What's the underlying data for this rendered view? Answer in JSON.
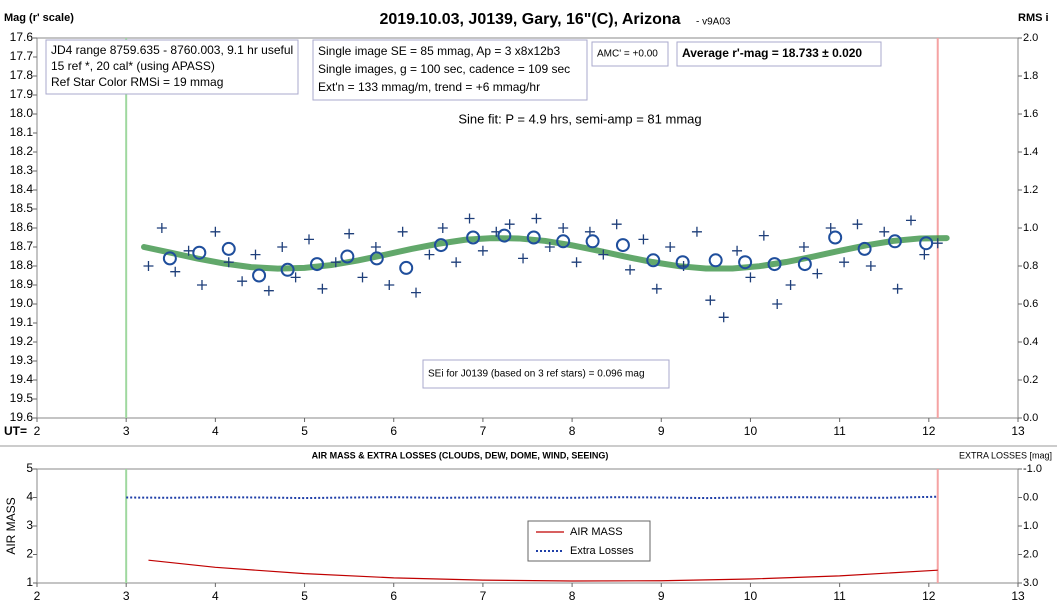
{
  "chart_data": [
    {
      "type": "scatter",
      "title": "2019.10.03, J0139, Gary, 16\"(C), Arizona",
      "subtitle": "- v9A03",
      "ylabel": "Mag (r' scale)",
      "y2label": "RMS i",
      "xprefix": "UT=",
      "xlim": [
        2,
        13
      ],
      "xticks": [
        2,
        3,
        4,
        5,
        6,
        7,
        8,
        9,
        10,
        11,
        12,
        13
      ],
      "ylim": [
        17.6,
        19.6
      ],
      "y_inverted": true,
      "yticks": [
        17.6,
        17.7,
        17.8,
        17.9,
        {
          "value": 18,
          "label": "18.0"
        },
        18.1,
        18.2,
        18.3,
        18.4,
        18.5,
        18.6,
        18.7,
        18.8,
        18.9,
        {
          "value": 19,
          "label": "19.0"
        },
        19.1,
        19.2,
        19.3,
        19.4,
        19.5,
        19.6
      ],
      "y2lim": [
        0,
        2
      ],
      "y2ticks": [
        {
          "value": 0,
          "label": "0.0"
        },
        0.2,
        0.4,
        0.6,
        0.8,
        {
          "value": 1,
          "label": "1.0"
        },
        1.2,
        1.4,
        1.6,
        1.8,
        {
          "value": 2,
          "label": "2.0"
        }
      ],
      "vlines": [
        {
          "x": 3,
          "color": "#9fd89f"
        },
        {
          "x": 12.1,
          "color": "#f5a3a3"
        }
      ],
      "text_boxes": [
        [
          "JD4 range 8759.635 - 8760.003, 9.1 hr useful",
          "15 ref *, 20 cal* (using APASS)",
          "Ref Star Color RMSi = 19 mmag"
        ],
        [
          "Single image SE = 85 mmag, Ap = 3 x8x12b3",
          "Single images, g = 100 sec, cadence = 109 sec",
          "Ext'n = 133 mmag/m, trend = +6 mmag/hr"
        ],
        [
          "AMC' = +0.00"
        ],
        [
          "Average r'-mag =  18.733 ± 0.020"
        ],
        [
          "SEi for J0139 (based on 3 ref stars) = 0.096 mag"
        ]
      ],
      "annotations": [
        "Sine fit: P = 4.9 hrs, semi-amp = 81 mmag"
      ],
      "series": [
        {
          "marker": "line",
          "color": "#2e8b3a",
          "x": [
            3.2,
            3.5,
            3.8,
            4.1,
            4.4,
            4.7,
            5.0,
            5.3,
            5.6,
            5.9,
            6.2,
            6.5,
            6.8,
            7.1,
            7.4,
            7.7,
            8.0,
            8.3,
            8.6,
            8.9,
            9.2,
            9.5,
            9.8,
            10.1,
            10.4,
            10.7,
            11.0,
            11.3,
            11.6,
            11.9,
            12.2
          ],
          "values": [
            18.7,
            18.73,
            18.761,
            18.787,
            18.806,
            18.814,
            18.81,
            18.795,
            18.771,
            18.741,
            18.71,
            18.683,
            18.662,
            18.653,
            18.655,
            18.668,
            18.691,
            18.72,
            18.751,
            18.779,
            18.801,
            18.813,
            18.813,
            18.801,
            18.779,
            18.751,
            18.72,
            18.691,
            18.668,
            18.655,
            18.653
          ]
        },
        {
          "marker": "cross",
          "color": "#1f3f7a",
          "x": [
            3.25,
            3.4,
            3.55,
            3.7,
            3.85,
            4.0,
            4.15,
            4.3,
            4.45,
            4.6,
            4.75,
            4.9,
            5.05,
            5.2,
            5.35,
            5.5,
            5.65,
            5.8,
            5.95,
            6.1,
            6.25,
            6.4,
            6.55,
            6.7,
            6.85,
            7.0,
            7.15,
            7.3,
            7.45,
            7.6,
            7.75,
            7.9,
            8.05,
            8.2,
            8.35,
            8.5,
            8.65,
            8.8,
            8.95,
            9.1,
            9.25,
            9.4,
            9.55,
            9.7,
            9.85,
            10.0,
            10.15,
            10.3,
            10.45,
            10.6,
            10.75,
            10.9,
            11.05,
            11.2,
            11.35,
            11.5,
            11.65,
            11.8,
            11.95,
            12.1
          ],
          "values": [
            18.8,
            18.6,
            18.83,
            18.72,
            18.9,
            18.62,
            18.78,
            18.88,
            18.74,
            18.93,
            18.7,
            18.86,
            18.66,
            18.92,
            18.78,
            18.63,
            18.86,
            18.7,
            18.9,
            18.62,
            18.94,
            18.74,
            18.6,
            18.78,
            18.55,
            18.72,
            18.62,
            18.58,
            18.76,
            18.55,
            18.7,
            18.6,
            18.78,
            18.62,
            18.74,
            18.58,
            18.82,
            18.66,
            18.92,
            18.7,
            18.8,
            18.62,
            18.98,
            19.07,
            18.72,
            18.86,
            18.64,
            19.0,
            18.9,
            18.7,
            18.84,
            18.6,
            18.78,
            18.58,
            18.8,
            18.62,
            18.92,
            18.56,
            18.74,
            18.68
          ]
        },
        {
          "marker": "circle",
          "color": "#1f4e9c",
          "x": [
            3.49,
            3.82,
            4.15,
            4.49,
            4.81,
            5.14,
            5.48,
            5.81,
            6.14,
            6.53,
            6.89,
            7.24,
            7.57,
            7.9,
            8.23,
            8.57,
            8.91,
            9.24,
            9.61,
            9.94,
            10.27,
            10.61,
            10.95,
            11.28,
            11.62,
            11.97
          ],
          "values": [
            18.76,
            18.73,
            18.71,
            18.85,
            18.82,
            18.79,
            18.75,
            18.76,
            18.81,
            18.69,
            18.65,
            18.64,
            18.65,
            18.67,
            18.67,
            18.69,
            18.77,
            18.78,
            18.77,
            18.78,
            18.79,
            18.79,
            18.65,
            18.71,
            18.67,
            18.68
          ]
        }
      ]
    },
    {
      "type": "line",
      "title": "AIR MASS & EXTRA LOSSES (CLOUDS, DEW, DOME, WIND, SEEING)",
      "ylabel": "AIR MASS",
      "y2label": "EXTRA LOSSES [mag]",
      "xlim": [
        2,
        13
      ],
      "xticks": [
        2,
        3,
        4,
        5,
        6,
        7,
        8,
        9,
        10,
        11,
        12,
        13
      ],
      "ylim": [
        1,
        5
      ],
      "yticks": [
        1,
        2,
        3,
        4,
        5
      ],
      "y2lim": [
        -1,
        3
      ],
      "y2_inverted": true,
      "y2ticks": [
        {
          "value": -1,
          "label": "-1.0"
        },
        {
          "value": 0,
          "label": "0.0"
        },
        {
          "value": 1,
          "label": "1.0"
        },
        {
          "value": 2,
          "label": "2.0"
        },
        {
          "value": 3,
          "label": "3.0"
        }
      ],
      "vlines": [
        {
          "x": 3,
          "color": "#9fd89f"
        },
        {
          "x": 12.1,
          "color": "#f5a3a3"
        }
      ],
      "legend": "center",
      "series": [
        {
          "name": "AIR MASS",
          "color": "#c00000",
          "style": "solid",
          "x": [
            3.25,
            4,
            5,
            6,
            7,
            8,
            9,
            10,
            11,
            12.1
          ],
          "values": [
            1.8,
            1.55,
            1.33,
            1.18,
            1.1,
            1.07,
            1.08,
            1.14,
            1.25,
            1.45
          ]
        },
        {
          "name": "Extra Losses",
          "color": "#1f3fa8",
          "style": "dotted",
          "axis": "y2",
          "x": [
            3,
            3.5,
            4,
            4.5,
            5,
            5.5,
            6,
            6.5,
            7,
            7.5,
            8,
            8.5,
            9,
            9.5,
            10,
            10.5,
            11,
            11.5,
            12,
            12.1
          ],
          "values": [
            0.0,
            0.01,
            -0.01,
            0.0,
            0.02,
            0.0,
            -0.01,
            0.01,
            0.0,
            0.0,
            0.01,
            -0.01,
            0.0,
            0.02,
            0.0,
            -0.01,
            0.0,
            0.01,
            -0.02,
            -0.03
          ]
        }
      ]
    }
  ]
}
